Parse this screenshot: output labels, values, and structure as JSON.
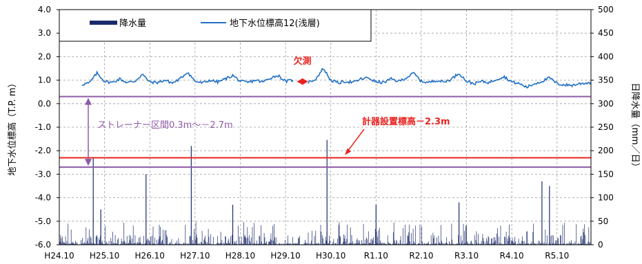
{
  "chart_data": {
    "type": "line",
    "title": "",
    "left_axis": {
      "label": "地下水位標高（T.P. m）",
      "min": -6.0,
      "max": 4.0,
      "ticks": [
        "4.0",
        "3.0",
        "2.0",
        "1.0",
        "0.0",
        "-1.0",
        "-2.0",
        "-3.0",
        "-4.0",
        "-5.0",
        "-6.0"
      ],
      "tick_values": [
        4,
        3,
        2,
        1,
        0,
        -1,
        -2,
        -3,
        -4,
        -5,
        -6
      ]
    },
    "right_axis": {
      "label": "日降水量（mm／日）",
      "min": 0,
      "max": 500,
      "ticks": [
        "500",
        "450",
        "400",
        "350",
        "300",
        "250",
        "200",
        "150",
        "100",
        "50",
        "0"
      ],
      "tick_values": [
        500,
        450,
        400,
        350,
        300,
        250,
        200,
        150,
        100,
        50,
        0
      ]
    },
    "x_axis": {
      "ticks": [
        "H24.10",
        "H25.10",
        "H26.10",
        "H27.10",
        "H28.10",
        "H29.10",
        "H30.10",
        "R1.10",
        "R2.10",
        "R3.10",
        "R4.10",
        "R5.10"
      ],
      "start": "2012-10",
      "end": "2024-07"
    },
    "grid": true,
    "legend": {
      "position": "top-left",
      "entries": [
        {
          "label": "降水量",
          "color": "#1a2a6c"
        },
        {
          "label": "地下水位標高12(浅層)",
          "color": "#1f6fc5"
        }
      ]
    },
    "series": [
      {
        "name": "地下水位標高12(浅層)",
        "axis": "left",
        "color": "#1f6fc5",
        "segments": [
          {
            "x": [
              "2013-04",
              "2013-06",
              "2013-08",
              "2013-10",
              "2013-12",
              "2014-02",
              "2014-04",
              "2014-06",
              "2014-08",
              "2014-10",
              "2014-12",
              "2015-02",
              "2015-04",
              "2015-06",
              "2015-08",
              "2015-10",
              "2015-12",
              "2016-02",
              "2016-04",
              "2016-06",
              "2016-08",
              "2016-10",
              "2016-12",
              "2017-02",
              "2017-04",
              "2017-06",
              "2017-08",
              "2017-10",
              "2017-12"
            ],
            "y": [
              0.82,
              0.88,
              1.3,
              0.95,
              0.9,
              1.05,
              0.9,
              0.95,
              1.25,
              0.92,
              0.9,
              1.0,
              0.88,
              1.05,
              1.35,
              0.95,
              0.88,
              1.0,
              0.92,
              1.05,
              1.2,
              0.95,
              0.9,
              1.0,
              0.92,
              1.1,
              1.2,
              0.95,
              1.0
            ]
          },
          {
            "x": [
              "2018-04",
              "2018-06",
              "2018-08",
              "2018-10",
              "2018-12",
              "2019-02",
              "2019-04",
              "2019-06",
              "2019-08",
              "2019-10",
              "2019-12",
              "2020-02",
              "2020-04",
              "2020-06",
              "2020-08",
              "2020-10",
              "2020-12",
              "2021-02",
              "2021-04",
              "2021-06",
              "2021-08",
              "2021-10",
              "2021-12",
              "2022-02",
              "2022-04",
              "2022-06",
              "2022-08",
              "2022-10",
              "2022-12",
              "2023-02",
              "2023-04",
              "2023-06",
              "2023-08",
              "2023-10",
              "2023-12",
              "2024-02",
              "2024-04",
              "2024-07"
            ],
            "y": [
              0.9,
              1.05,
              1.5,
              1.0,
              0.88,
              0.95,
              0.9,
              1.05,
              1.1,
              0.92,
              0.9,
              1.05,
              0.95,
              1.1,
              1.3,
              0.95,
              0.9,
              1.0,
              0.92,
              1.05,
              1.3,
              0.95,
              0.85,
              0.95,
              0.9,
              1.05,
              1.15,
              0.92,
              0.85,
              0.7,
              0.85,
              0.95,
              1.1,
              0.85,
              0.8,
              0.78,
              0.85,
              0.9
            ]
          }
        ]
      },
      {
        "name": "降水量",
        "axis": "right",
        "type": "bar",
        "color": "#1a2a6c",
        "peaks": [
          {
            "date": "2013-07",
            "value": 185
          },
          {
            "date": "2013-09",
            "value": 75
          },
          {
            "date": "2014-09",
            "value": 150
          },
          {
            "date": "2015-09",
            "value": 210
          },
          {
            "date": "2016-08",
            "value": 85
          },
          {
            "date": "2018-09",
            "value": 223
          },
          {
            "date": "2019-10",
            "value": 85
          },
          {
            "date": "2021-08",
            "value": 90
          },
          {
            "date": "2023-06",
            "value": 135
          },
          {
            "date": "2023-08",
            "value": 125
          }
        ],
        "baseline_daily_max": 35
      }
    ],
    "reference_lines": [
      {
        "label": "計器設置標高－2.3m",
        "value": -2.3,
        "axis": "left",
        "color": "#e8231f"
      },
      {
        "label": "",
        "value": 0.3,
        "axis": "left",
        "color": "#8e5aa8"
      },
      {
        "label": "",
        "value": -2.7,
        "axis": "left",
        "color": "#8e5aa8"
      }
    ],
    "annotations": [
      {
        "text": "欠測",
        "color": "#e8231f",
        "from": "2018-01",
        "to": "2018-04",
        "y": 1.0
      },
      {
        "text": "ストレーナー区間0.3m～－2.7m",
        "color": "#8e5aa8",
        "from_value": 0.3,
        "to_value": -2.7
      },
      {
        "text": "計器設置標高－2.3m",
        "color": "#e8231f",
        "points_to_value": -2.3
      }
    ]
  }
}
